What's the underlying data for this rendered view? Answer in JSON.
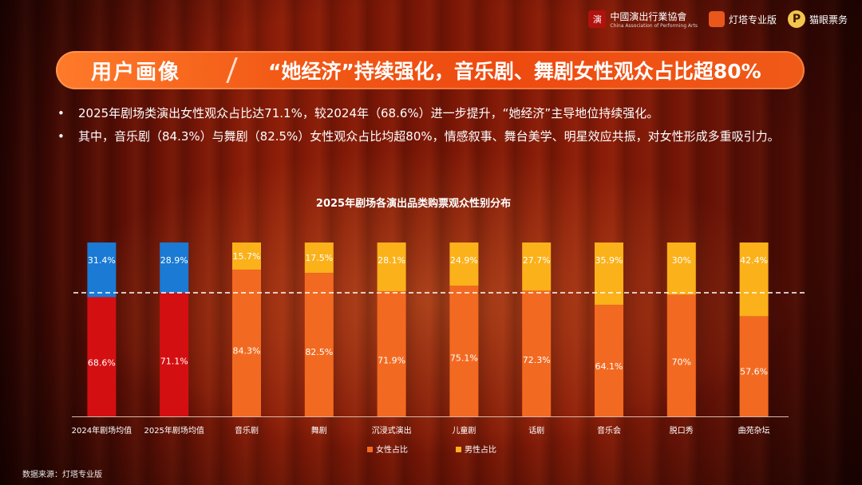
{
  "logos": {
    "association": "中國演出行業協會",
    "association_en": "China Association of Performing Arts",
    "dengta": "灯塔专业版",
    "maoyan": "猫眼票务"
  },
  "banner": {
    "tag": "用户画像",
    "title": "“她经济”持续强化，音乐剧、舞剧女性观众占比超80%"
  },
  "bullets": [
    "2025年剧场类演出女性观众占比达71.1%，较2024年（68.6%）进一步提升，“她经济”主导地位持续强化。",
    "其中，音乐剧（84.3%）与舞剧（82.5%）女性观众占比均超80%，情感叙事、舞台美学、明星效应共振，对女性形成多重吸引力。"
  ],
  "source": "数据来源：灯塔专业版",
  "chart_data": {
    "type": "bar",
    "stacked": true,
    "title": "2025年剧场各演出品类购票观众性别分布",
    "categories": [
      "2024年剧场均值",
      "2025年剧场均值",
      "音乐剧",
      "舞剧",
      "沉浸式演出",
      "儿童剧",
      "话剧",
      "音乐会",
      "脱口秀",
      "曲苑杂坛"
    ],
    "series": [
      {
        "name": "女性占比",
        "values": [
          68.6,
          71.1,
          84.3,
          82.5,
          71.9,
          75.1,
          72.3,
          64.1,
          70,
          57.6
        ],
        "labels": [
          "68.6%",
          "71.1%",
          "84.3%",
          "82.5%",
          "71.9%",
          "75.1%",
          "72.3%",
          "64.1%",
          "70%",
          "57.6%"
        ]
      },
      {
        "name": "男性占比",
        "values": [
          31.4,
          28.9,
          15.7,
          17.5,
          28.1,
          24.9,
          27.7,
          35.9,
          30,
          42.4
        ],
        "labels": [
          "31.4%",
          "28.9%",
          "15.7%",
          "17.5%",
          "28.1%",
          "24.9%",
          "27.7%",
          "35.9%",
          "30%",
          "42.4%"
        ]
      }
    ],
    "ylim": [
      0,
      100
    ],
    "reference_line": 71.1,
    "legend_position": "bottom",
    "colors": {
      "female": "#f26a21",
      "male": "#fbb11a",
      "avg_female": "#d40f12",
      "avg_male": "#1a7ad4"
    }
  }
}
